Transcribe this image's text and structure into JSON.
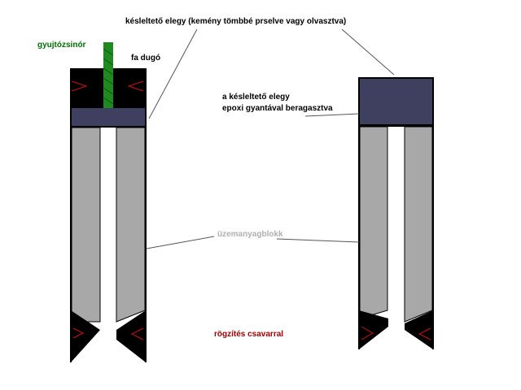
{
  "labels": {
    "top_mixture": "késleltető elegy (kemény tömbbé prselve vagy olvasztva)",
    "fuse": "gyujtózsinór",
    "wood_plug": "fa dugó",
    "epoxy_line1": "a késleltető elegy",
    "epoxy_line2": "epoxi gyantával beragasztva",
    "fuel_block": "üzemanyagblokk",
    "screw_fix": "rögzítés csavarral"
  },
  "colors": {
    "fuse_label": "#007000",
    "fuel_label": "#b0b0b0",
    "screw_label": "#a00000",
    "delay_mix": "#3f3f5f",
    "fuel_block": "#a8a8a8",
    "plug": "#000000",
    "fuse": "#1f8a1f",
    "red_marks": "#d01010"
  }
}
